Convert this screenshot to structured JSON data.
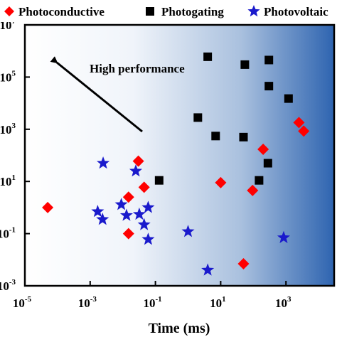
{
  "chart_data": {
    "type": "scatter",
    "xlabel": "Time (ms)",
    "ylabel": "",
    "x_scale": "log",
    "y_scale": "log",
    "xlim": [
      1e-05,
      30000.0
    ],
    "ylim": [
      0.001,
      10000000.0
    ],
    "x_ticks": [
      {
        "base": "10",
        "exp": "-5",
        "value": 1e-05
      },
      {
        "base": "10",
        "exp": "-3",
        "value": 0.001
      },
      {
        "base": "10",
        "exp": "-1",
        "value": 0.1
      },
      {
        "base": "10",
        "exp": "1",
        "value": 10
      },
      {
        "base": "10",
        "exp": "3",
        "value": 1000
      }
    ],
    "y_ticks": [
      {
        "base": "10",
        "exp": "7",
        "value": 10000000.0
      },
      {
        "base": "10",
        "exp": "5",
        "value": 100000.0
      },
      {
        "base": "10",
        "exp": "3",
        "value": 1000.0
      },
      {
        "base": "10",
        "exp": "1",
        "value": 10
      },
      {
        "base": "10",
        "exp": "-1",
        "value": 0.1
      },
      {
        "base": "10",
        "exp": "-3",
        "value": 0.001
      }
    ],
    "grid": false,
    "legend_position": "top",
    "background": "horizontal gradient white to blue",
    "colors": {
      "photoconductive": "#ff0000",
      "photogating": "#000000",
      "photovoltaic": "#1a1acc",
      "gradient_start": "#ffffff",
      "gradient_end": "#2e64b0"
    },
    "annotation": {
      "text": "High performance",
      "arrow": "toward upper-left"
    },
    "series": [
      {
        "name": "Photoconductive",
        "marker": "diamond",
        "points": [
          {
            "x": 5e-05,
            "y": 1
          },
          {
            "x": 0.03,
            "y": 60
          },
          {
            "x": 0.045,
            "y": 6
          },
          {
            "x": 0.015,
            "y": 2.5
          },
          {
            "x": 0.015,
            "y": 0.1
          },
          {
            "x": 10,
            "y": 9
          },
          {
            "x": 95,
            "y": 4.5
          },
          {
            "x": 200,
            "y": 170
          },
          {
            "x": 50,
            "y": 0.007
          },
          {
            "x": 2500,
            "y": 1800
          },
          {
            "x": 3500,
            "y": 850
          }
        ]
      },
      {
        "name": "Photogating",
        "marker": "square",
        "points": [
          {
            "x": 4,
            "y": 600000
          },
          {
            "x": 300,
            "y": 450000
          },
          {
            "x": 55,
            "y": 300000
          },
          {
            "x": 300,
            "y": 45000
          },
          {
            "x": 1200,
            "y": 15000
          },
          {
            "x": 2,
            "y": 2800
          },
          {
            "x": 7,
            "y": 550
          },
          {
            "x": 50,
            "y": 500
          },
          {
            "x": 280,
            "y": 50
          },
          {
            "x": 150,
            "y": 11
          },
          {
            "x": 0.13,
            "y": 11
          }
        ]
      },
      {
        "name": "Photovoltaic",
        "marker": "star",
        "points": [
          {
            "x": 0.0025,
            "y": 50
          },
          {
            "x": 0.025,
            "y": 25
          },
          {
            "x": 0.009,
            "y": 1.3
          },
          {
            "x": 0.0017,
            "y": 0.7
          },
          {
            "x": 0.0024,
            "y": 0.35
          },
          {
            "x": 0.013,
            "y": 0.5
          },
          {
            "x": 0.06,
            "y": 1
          },
          {
            "x": 0.032,
            "y": 0.55
          },
          {
            "x": 0.045,
            "y": 0.22
          },
          {
            "x": 0.06,
            "y": 0.06
          },
          {
            "x": 1,
            "y": 0.12
          },
          {
            "x": 4,
            "y": 0.004
          },
          {
            "x": 850,
            "y": 0.07
          }
        ]
      }
    ]
  }
}
